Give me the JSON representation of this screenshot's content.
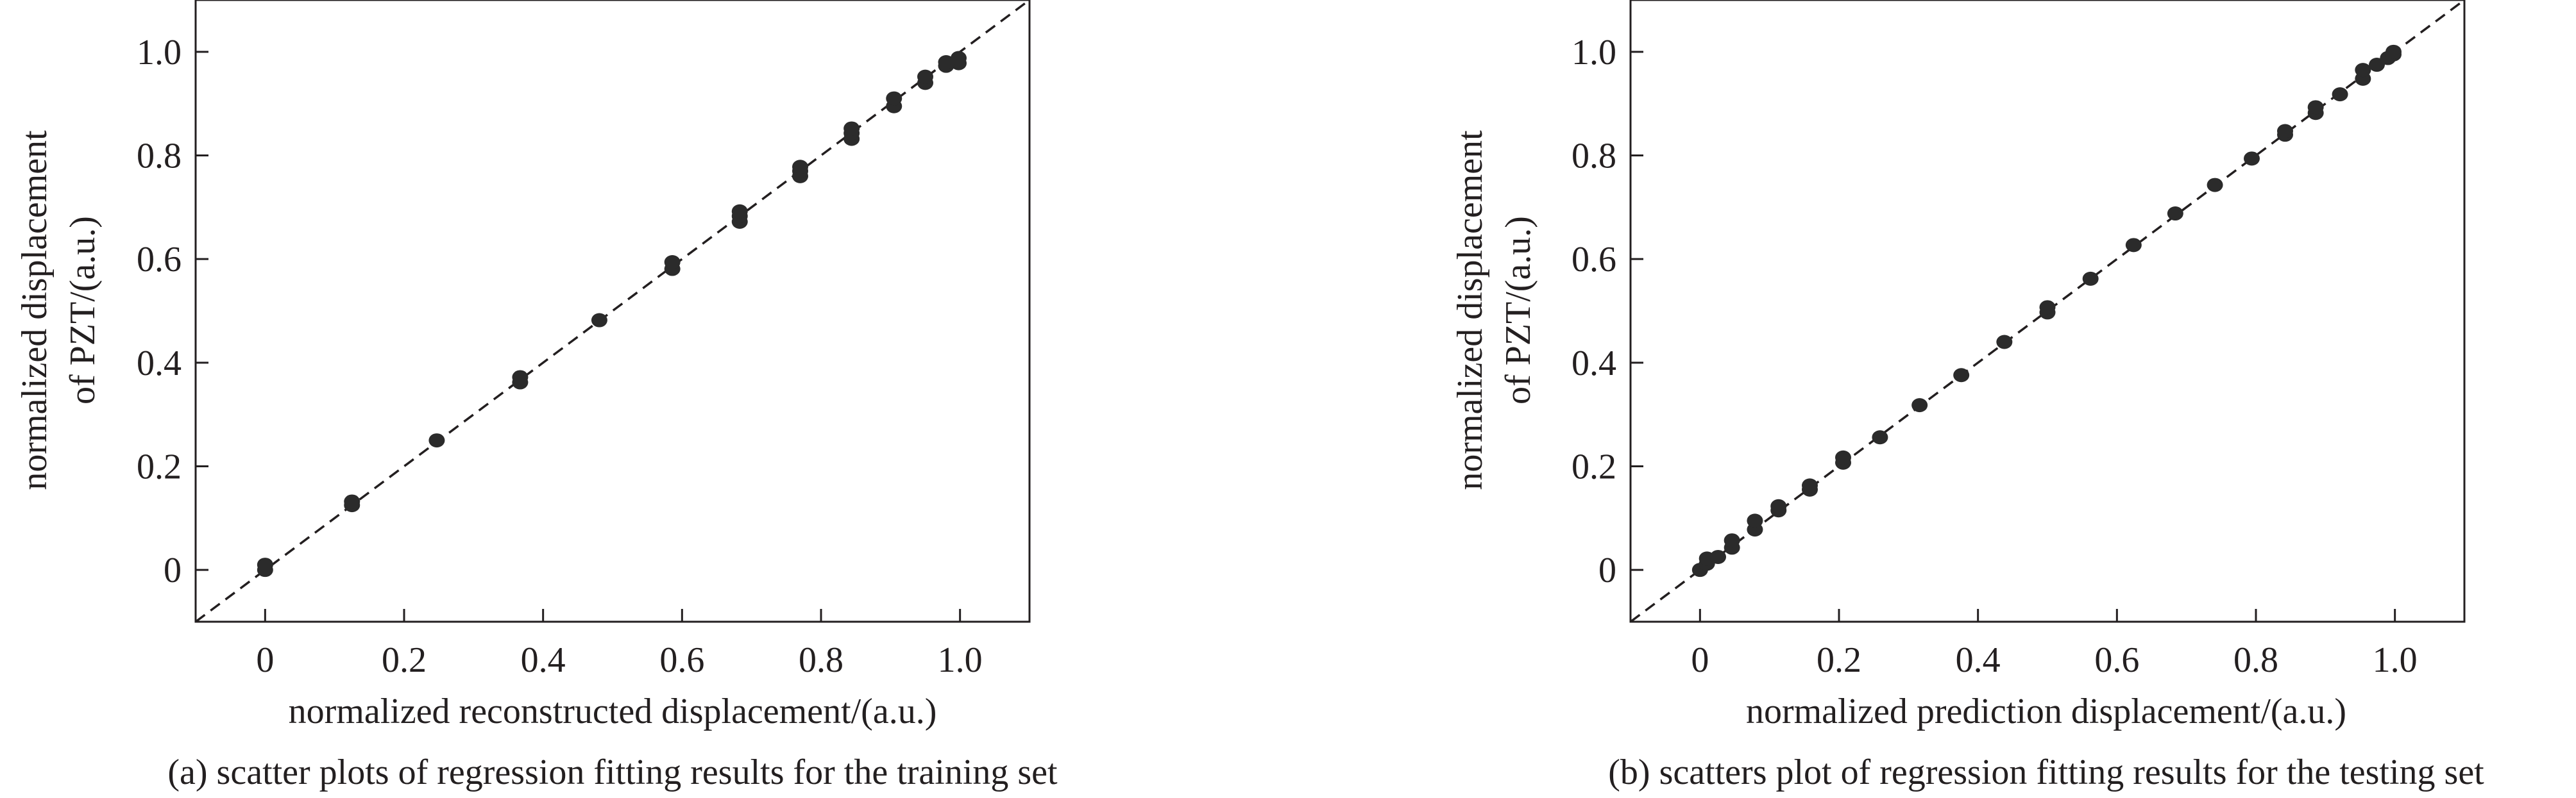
{
  "chart_data": [
    {
      "type": "scatter",
      "xlabel": "normalized reconstructed displacement/(a.u.)",
      "ylabel": [
        "normalized displacement",
        "of  PZT/(a.u.)"
      ],
      "caption": "(a) scatter plots of regression fitting results for the training set",
      "xlim": [
        -0.1,
        1.1
      ],
      "ylim": [
        -0.1,
        1.1
      ],
      "xticks": [
        0,
        0.2,
        0.4,
        0.6,
        0.8,
        1.0
      ],
      "xtick_labels": [
        "0",
        "0.2",
        "0.4",
        "0.6",
        "0.8",
        "1.0"
      ],
      "yticks": [
        0,
        0.2,
        0.4,
        0.6,
        0.8,
        1.0
      ],
      "ytick_labels": [
        "0",
        "0.2",
        "0.4",
        "0.6",
        "0.8",
        "1.0"
      ],
      "reference_line": "y = x (dashed)",
      "grid": false,
      "points": [
        {
          "x": 0.0,
          "y": 0.0
        },
        {
          "x": 0.0,
          "y": 0.01
        },
        {
          "x": 0.125,
          "y": 0.125
        },
        {
          "x": 0.125,
          "y": 0.132
        },
        {
          "x": 0.247,
          "y": 0.25
        },
        {
          "x": 0.367,
          "y": 0.362
        },
        {
          "x": 0.367,
          "y": 0.372
        },
        {
          "x": 0.481,
          "y": 0.482
        },
        {
          "x": 0.586,
          "y": 0.581
        },
        {
          "x": 0.586,
          "y": 0.594
        },
        {
          "x": 0.683,
          "y": 0.672
        },
        {
          "x": 0.683,
          "y": 0.683
        },
        {
          "x": 0.683,
          "y": 0.692
        },
        {
          "x": 0.77,
          "y": 0.76
        },
        {
          "x": 0.77,
          "y": 0.77
        },
        {
          "x": 0.77,
          "y": 0.778
        },
        {
          "x": 0.844,
          "y": 0.832
        },
        {
          "x": 0.844,
          "y": 0.843
        },
        {
          "x": 0.844,
          "y": 0.852
        },
        {
          "x": 0.905,
          "y": 0.895
        },
        {
          "x": 0.905,
          "y": 0.91
        },
        {
          "x": 0.95,
          "y": 0.94
        },
        {
          "x": 0.95,
          "y": 0.952
        },
        {
          "x": 0.98,
          "y": 0.973
        },
        {
          "x": 0.98,
          "y": 0.98
        },
        {
          "x": 0.998,
          "y": 0.978
        },
        {
          "x": 0.998,
          "y": 0.988
        }
      ]
    },
    {
      "type": "scatter",
      "xlabel": "normalized prediction displacement/(a.u.)",
      "ylabel": [
        "normalized displacement",
        "of  PZT/(a.u.)"
      ],
      "caption": "(b) scatters plot of regression fitting results for the testing set",
      "xlim": [
        -0.1,
        1.1
      ],
      "ylim": [
        -0.1,
        1.1
      ],
      "xticks": [
        0,
        0.2,
        0.4,
        0.6,
        0.8,
        1.0
      ],
      "xtick_labels": [
        "0",
        "0.2",
        "0.4",
        "0.6",
        "0.8",
        "1.0"
      ],
      "yticks": [
        0,
        0.2,
        0.4,
        0.6,
        0.8,
        1.0
      ],
      "ytick_labels": [
        "0",
        "0.2",
        "0.4",
        "0.6",
        "0.8",
        "1.0"
      ],
      "reference_line": "y = x (dashed)",
      "grid": false,
      "points": [
        {
          "x": 0.0,
          "y": 0.0
        },
        {
          "x": 0.01,
          "y": 0.012
        },
        {
          "x": 0.01,
          "y": 0.022
        },
        {
          "x": 0.026,
          "y": 0.025
        },
        {
          "x": 0.046,
          "y": 0.043
        },
        {
          "x": 0.046,
          "y": 0.057
        },
        {
          "x": 0.079,
          "y": 0.078
        },
        {
          "x": 0.079,
          "y": 0.095
        },
        {
          "x": 0.113,
          "y": 0.115
        },
        {
          "x": 0.113,
          "y": 0.123
        },
        {
          "x": 0.158,
          "y": 0.155
        },
        {
          "x": 0.158,
          "y": 0.163
        },
        {
          "x": 0.206,
          "y": 0.207
        },
        {
          "x": 0.206,
          "y": 0.217
        },
        {
          "x": 0.259,
          "y": 0.256
        },
        {
          "x": 0.316,
          "y": 0.318
        },
        {
          "x": 0.376,
          "y": 0.376
        },
        {
          "x": 0.438,
          "y": 0.44
        },
        {
          "x": 0.5,
          "y": 0.497
        },
        {
          "x": 0.5,
          "y": 0.507
        },
        {
          "x": 0.562,
          "y": 0.562
        },
        {
          "x": 0.624,
          "y": 0.627
        },
        {
          "x": 0.684,
          "y": 0.688
        },
        {
          "x": 0.741,
          "y": 0.743
        },
        {
          "x": 0.794,
          "y": 0.794
        },
        {
          "x": 0.842,
          "y": 0.84
        },
        {
          "x": 0.842,
          "y": 0.847
        },
        {
          "x": 0.886,
          "y": 0.882
        },
        {
          "x": 0.886,
          "y": 0.893
        },
        {
          "x": 0.921,
          "y": 0.918
        },
        {
          "x": 0.954,
          "y": 0.948
        },
        {
          "x": 0.954,
          "y": 0.965
        },
        {
          "x": 0.974,
          "y": 0.975
        },
        {
          "x": 0.99,
          "y": 0.988
        },
        {
          "x": 0.998,
          "y": 0.995
        },
        {
          "x": 0.998,
          "y": 1.0
        }
      ]
    }
  ],
  "colors": {
    "marker": "#2b2b2b",
    "axis": "#231f20",
    "reference_line": "#231f20",
    "text": "#231f20",
    "background": "#ffffff"
  }
}
